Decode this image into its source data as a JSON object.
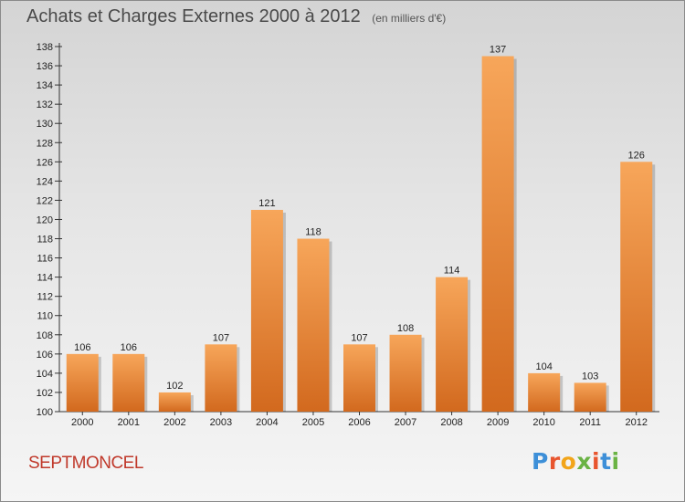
{
  "header": {
    "title": "Achats et Charges Externes 2000 à 2012",
    "unit_note": "(en milliers d'€)"
  },
  "footer": {
    "location": "SEPTMONCEL",
    "brand_letters": [
      "P",
      "r",
      "o",
      "x",
      "i",
      "t",
      "i"
    ]
  },
  "colors": {
    "bar_top": "#f7a65a",
    "bar_bottom": "#d2691e",
    "location_text": "#c0392b",
    "brand_letters": [
      "#3d8fd8",
      "#e8552e",
      "#f2a51a",
      "#6ab344",
      "#e8552e",
      "#3d8fd8",
      "#6ab344"
    ]
  },
  "chart_data": {
    "type": "bar",
    "title": "Achats et Charges Externes 2000 à 2012",
    "subtitle": "(en milliers d'€)",
    "xlabel": "",
    "ylabel": "",
    "categories": [
      "2000",
      "2001",
      "2002",
      "2003",
      "2004",
      "2005",
      "2006",
      "2007",
      "2008",
      "2009",
      "2010",
      "2011",
      "2012"
    ],
    "values": [
      106,
      106,
      102,
      107,
      121,
      118,
      107,
      108,
      114,
      137,
      104,
      103,
      126
    ],
    "ylim": [
      100,
      138
    ],
    "yticks": [
      100,
      102,
      104,
      106,
      108,
      110,
      112,
      114,
      116,
      118,
      120,
      122,
      124,
      126,
      128,
      130,
      132,
      134,
      136,
      138
    ],
    "grid": false,
    "legend": "none"
  }
}
